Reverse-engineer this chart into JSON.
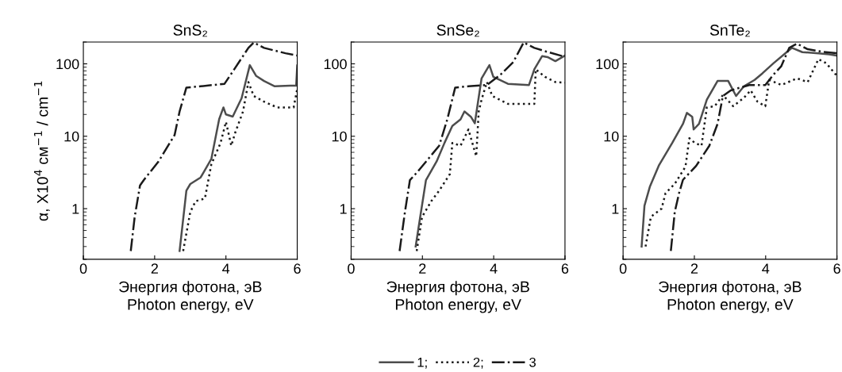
{
  "chart_data": [
    {
      "type": "line",
      "title": "SnS₂",
      "xlabel": "Энергия фотона, эВ\nPhoton energy, eV",
      "ylabel": "α, X10$^{4}$ см$^{−1}$ / cm$^{−1}$",
      "log": true,
      "xlim": [
        0,
        6
      ],
      "xticks": [
        0,
        2,
        4,
        6
      ],
      "ylim": [
        0.2,
        200
      ],
      "yticks": [
        1,
        10,
        100
      ],
      "legend": false,
      "series": [
        {
          "color": "#4d4d4d",
          "line_style": "solid",
          "x": [
            2.7,
            2.89,
            3.0,
            3.29,
            3.59,
            3.81,
            3.93,
            4.0,
            4.19,
            4.44,
            4.67,
            4.85,
            5.07,
            5.37,
            5.8,
            5.97,
            6.0
          ],
          "values": [
            0.26,
            1.77,
            2.19,
            2.7,
            4.86,
            17.2,
            25,
            20,
            18.7,
            33.6,
            96,
            68,
            58,
            49,
            50,
            50,
            95
          ]
        },
        {
          "color": "#1a1a1a",
          "line_style": "dotted",
          "x": [
            2.8,
            3.0,
            3.15,
            3.41,
            3.59,
            3.85,
            4.0,
            4.15,
            4.26,
            4.48,
            4.63,
            4.78,
            5.07,
            5.44,
            5.9,
            6.0
          ],
          "values": [
            0.26,
            0.9,
            1.27,
            1.38,
            4.1,
            8.1,
            15.8,
            7.4,
            11.2,
            22,
            56,
            36,
            30,
            25,
            25,
            45
          ]
        },
        {
          "color": "#1a1a1a",
          "line_style": "dashdot",
          "x": [
            1.33,
            1.44,
            1.59,
            1.7,
            2.11,
            2.56,
            2.7,
            2.89,
            3.29,
            3.96,
            4.19,
            4.63,
            4.78,
            5.07,
            5.67,
            6.0
          ],
          "values": [
            0.26,
            0.77,
            2.1,
            2.5,
            4.5,
            10.4,
            22,
            47,
            49,
            53,
            78,
            166,
            197,
            166,
            140,
            130
          ]
        }
      ]
    },
    {
      "type": "line",
      "title": "SnSe₂",
      "xlabel": "Энергия фотона, эВ\nPhoton energy, eV",
      "log": true,
      "xlim": [
        0,
        6
      ],
      "xticks": [
        0,
        2,
        4,
        6
      ],
      "ylim": [
        0.2,
        200
      ],
      "yticks": [
        1,
        10,
        100
      ],
      "legend": "bottom",
      "series": [
        {
          "name": "1;",
          "color": "#4d4d4d",
          "line_style": "solid",
          "x": [
            1.81,
            1.96,
            2.1,
            2.4,
            2.62,
            2.84,
            3.07,
            3.18,
            3.36,
            3.47,
            3.66,
            3.81,
            3.88,
            3.99,
            4.4,
            4.99,
            5.14,
            5.36,
            5.51,
            5.73,
            6.0
          ],
          "values": [
            0.3,
            0.9,
            2.48,
            4.5,
            8.1,
            13.9,
            17.1,
            22,
            18.6,
            15.1,
            63,
            84,
            96,
            66,
            53,
            51,
            84,
            128,
            124,
            109,
            130
          ]
        },
        {
          "name": "2;",
          "color": "#1a1a1a",
          "line_style": "dotted",
          "x": [
            1.84,
            1.99,
            2.25,
            2.47,
            2.77,
            2.84,
            3.07,
            3.29,
            3.51,
            3.58,
            3.66,
            3.81,
            3.96,
            4.4,
            5.14,
            5.18,
            5.44,
            5.73,
            6.0
          ],
          "values": [
            0.26,
            0.77,
            1.27,
            1.77,
            3.0,
            8.1,
            7.4,
            12.4,
            5.3,
            22,
            32,
            56,
            36,
            28,
            28,
            84,
            66,
            56,
            55
          ]
        },
        {
          "name": "3",
          "color": "#1a1a1a",
          "line_style": "dashdot",
          "x": [
            1.36,
            1.51,
            1.65,
            1.88,
            2.47,
            2.7,
            2.92,
            3.29,
            3.81,
            4.18,
            4.55,
            4.84,
            5.14,
            5.51,
            6.0
          ],
          "values": [
            0.26,
            0.9,
            2.48,
            3.3,
            7.4,
            17.2,
            47,
            49,
            51,
            70,
            106,
            197,
            166,
            146,
            125
          ]
        }
      ]
    },
    {
      "type": "line",
      "title": "SnTe₂",
      "xlabel": "Энергия фотона, эВ\nPhoton energy, eV",
      "log": true,
      "xlim": [
        0,
        6
      ],
      "xticks": [
        0,
        2,
        4,
        6
      ],
      "ylim": [
        0.2,
        200
      ],
      "yticks": [
        1,
        10,
        100
      ],
      "legend": false,
      "series": [
        {
          "color": "#4d4d4d",
          "line_style": "solid",
          "x": [
            0.52,
            0.6,
            0.75,
            1.01,
            1.38,
            1.68,
            1.79,
            1.94,
            1.98,
            2.13,
            2.35,
            2.65,
            2.95,
            3.17,
            3.39,
            3.69,
            3.91,
            4.21,
            4.59,
            4.74,
            5.03,
            5.48,
            5.78,
            6.0
          ],
          "values": [
            0.3,
            1.1,
            2.0,
            4.0,
            8.1,
            14.8,
            21,
            18.6,
            12.4,
            14.8,
            32,
            58,
            58,
            36,
            49,
            60,
            74,
            101,
            145,
            166,
            145,
            140,
            135,
            130
          ]
        },
        {
          "color": "#1a1a1a",
          "line_style": "dotted",
          "x": [
            0.63,
            0.78,
            1.08,
            1.19,
            1.45,
            1.75,
            1.86,
            2.01,
            2.2,
            2.35,
            2.57,
            2.8,
            3.09,
            3.39,
            3.58,
            3.77,
            3.99,
            4.1,
            4.44,
            4.88,
            5.18,
            5.48,
            5.7,
            6.0
          ],
          "values": [
            0.3,
            0.77,
            1.0,
            1.63,
            2.2,
            3.8,
            9.4,
            8.1,
            7.4,
            25,
            26,
            37,
            26,
            34,
            43,
            30,
            26,
            60,
            51,
            63,
            56,
            116,
            102,
            68
          ]
        },
        {
          "color": "#1a1a1a",
          "line_style": "dashdot",
          "x": [
            1.34,
            1.45,
            1.57,
            1.68,
            2.05,
            2.42,
            2.65,
            2.8,
            3.02,
            3.54,
            3.99,
            4.21,
            4.44,
            4.66,
            4.88,
            5.18,
            5.63,
            6.0
          ],
          "values": [
            0.26,
            0.9,
            1.63,
            2.5,
            3.9,
            7.4,
            14.8,
            36,
            43,
            51,
            51,
            70,
            93,
            166,
            190,
            159,
            146,
            140
          ]
        }
      ]
    }
  ]
}
